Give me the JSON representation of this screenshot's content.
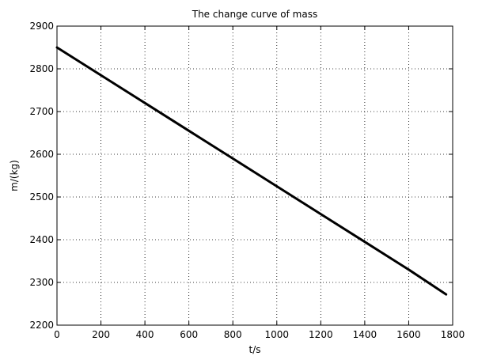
{
  "chart_data": {
    "type": "line",
    "title": "The change curve of mass",
    "xlabel": "t/s",
    "ylabel": "m/(kg)",
    "xlim": [
      0,
      1800
    ],
    "ylim": [
      2200,
      2900
    ],
    "xticks": [
      0,
      200,
      400,
      600,
      800,
      1000,
      1200,
      1400,
      1600,
      1800
    ],
    "yticks": [
      2200,
      2300,
      2400,
      2500,
      2600,
      2700,
      2800,
      2900
    ],
    "grid": true,
    "series": [
      {
        "color": "#000000",
        "x": [
          0,
          200,
          400,
          600,
          800,
          1000,
          1200,
          1400,
          1600,
          1770
        ],
        "y": [
          2850,
          2785,
          2720,
          2655,
          2590,
          2525,
          2460,
          2395,
          2330,
          2272
        ]
      }
    ]
  }
}
